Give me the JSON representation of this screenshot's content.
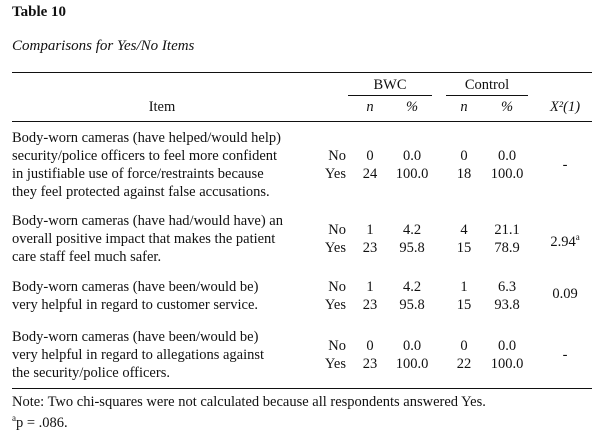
{
  "table": {
    "number": "Table 10",
    "title": "Comparisons for Yes/No Items",
    "group_headers": {
      "bwc": "BWC",
      "control": "Control"
    },
    "column_headers": {
      "item": "Item",
      "bwc_n": "n",
      "bwc_pct": "%",
      "ctrl_n": "n",
      "ctrl_pct": "%",
      "chi_square": "X²(1)"
    },
    "rows": [
      {
        "item_lines": [
          "Body-worn cameras (have helped/would help)",
          "security/police officers to feel more confident",
          "in justifiable use of force/restraints because",
          "they feel protected against false accusations."
        ],
        "no_label": "No",
        "yes_label": "Yes",
        "bwc_n_no": "0",
        "bwc_pct_no": "0.0",
        "bwc_n_yes": "24",
        "bwc_pct_yes": "100.0",
        "ctrl_n_no": "0",
        "ctrl_pct_no": "0.0",
        "ctrl_n_yes": "18",
        "ctrl_pct_yes": "100.0",
        "chi": "-",
        "chi_mark": ""
      },
      {
        "item_lines": [
          "Body-worn cameras (have had/would have) an",
          "overall positive  impact that makes the patient",
          "care staff feel much safer."
        ],
        "no_label": "No",
        "yes_label": "Yes",
        "bwc_n_no": "1",
        "bwc_pct_no": "4.2",
        "bwc_n_yes": "23",
        "bwc_pct_yes": "95.8",
        "ctrl_n_no": "4",
        "ctrl_pct_no": "21.1",
        "ctrl_n_yes": "15",
        "ctrl_pct_yes": "78.9",
        "chi": "2.94",
        "chi_mark": "a"
      },
      {
        "item_lines": [
          "Body-worn cameras (have been/would be)",
          "very helpful  in regard to customer service."
        ],
        "no_label": "No",
        "yes_label": "Yes",
        "bwc_n_no": "1",
        "bwc_pct_no": "4.2",
        "bwc_n_yes": "23",
        "bwc_pct_yes": "95.8",
        "ctrl_n_no": "1",
        "ctrl_pct_no": "6.3",
        "ctrl_n_yes": "15",
        "ctrl_pct_yes": "93.8",
        "chi": "0.09",
        "chi_mark": ""
      },
      {
        "item_lines": [
          "Body-worn cameras (have been/would be)",
          "very helpful  in regard to allegations against",
          "the security/police officers."
        ],
        "no_label": "No",
        "yes_label": "Yes",
        "bwc_n_no": "0",
        "bwc_pct_no": "0.0",
        "bwc_n_yes": "23",
        "bwc_pct_yes": "100.0",
        "ctrl_n_no": "0",
        "ctrl_pct_no": "0.0",
        "ctrl_n_yes": "22",
        "ctrl_pct_yes": "100.0",
        "chi": "-",
        "chi_mark": ""
      }
    ],
    "note": "Note: Two chi-squares were not calculated because all respondents answered Yes.",
    "footnote_mark": "a",
    "footnote_text": "p = .086."
  }
}
